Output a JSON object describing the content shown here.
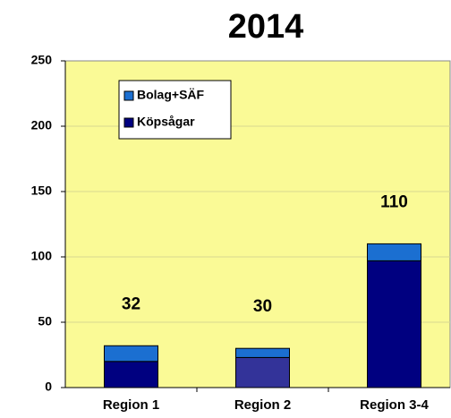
{
  "chart_data": {
    "type": "stacked_bar",
    "title": "2014",
    "categories": [
      "Region 1",
      "Region 2",
      "Region 3-4"
    ],
    "series": [
      {
        "name": "Köpsågar",
        "color": "#000080",
        "point_colors": [
          "#000080",
          "#333399",
          "#000080"
        ],
        "values": [
          20,
          23,
          97
        ]
      },
      {
        "name": "Bolag+SÄF",
        "color": "#1b6fd1",
        "values": [
          12,
          7,
          13
        ]
      }
    ],
    "totals": [
      32,
      30,
      110
    ],
    "ylim": [
      0,
      250
    ],
    "yticks": [
      0,
      50,
      100,
      150,
      200,
      250
    ],
    "grid": true,
    "plot_background": "#fafa96",
    "legend": "upper left"
  }
}
